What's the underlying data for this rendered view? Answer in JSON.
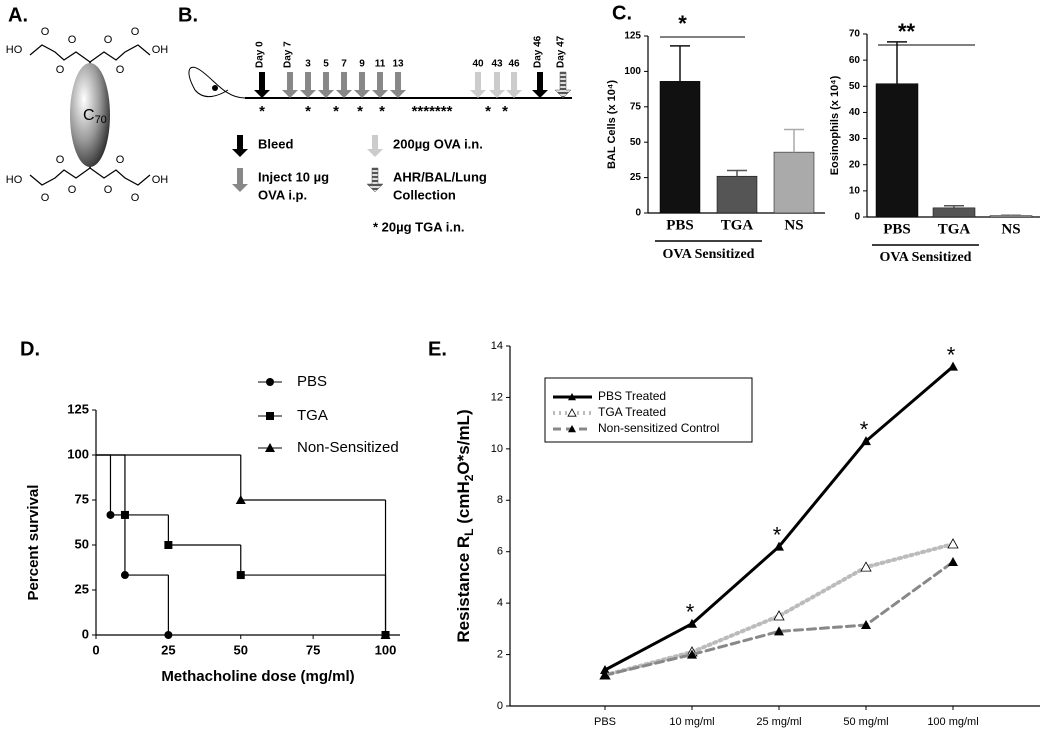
{
  "panel_labels": {
    "a": "A.",
    "b": "B.",
    "c": "C.",
    "d": "D.",
    "e": "E."
  },
  "structure": {
    "atoms": [
      "HO",
      "O",
      "O",
      "O",
      "O",
      "O",
      "O",
      "OH",
      "HO",
      "O",
      "O",
      "O",
      "O",
      "O",
      "O",
      "OH"
    ],
    "core": "C",
    "core_subscript": "70"
  },
  "timeline": {
    "day_labels": [
      "Day 0",
      "Day 7",
      "Day 46",
      "Day 47"
    ],
    "day_numbers": [
      "3",
      "5",
      "7",
      "9",
      "11",
      "13",
      "40",
      "43",
      "46"
    ],
    "stars": [
      "*",
      "*",
      "*",
      "*",
      "*",
      "*******",
      "*",
      "*"
    ],
    "legend": [
      {
        "text": [
          "Bleed"
        ]
      },
      {
        "text": [
          "Inject 10 µg",
          "OVA i.p."
        ]
      },
      {
        "text": [
          "200µg OVA i.n."
        ]
      },
      {
        "text": [
          "AHR/BAL/Lung",
          "Collection"
        ]
      }
    ],
    "note": "* 20µg TGA i.n."
  },
  "chart_data": [
    {
      "type": "bar",
      "ylabel": "BAL Cells (x 10⁴)",
      "categories": [
        "PBS",
        "TGA",
        "NS"
      ],
      "values": [
        93,
        26,
        43
      ],
      "errors": [
        25,
        4,
        16
      ],
      "colors": [
        "#111111",
        "#555555",
        "#aaaaaa"
      ],
      "ylim": [
        0,
        125
      ],
      "yticks": [
        0,
        25,
        50,
        75,
        100,
        125
      ],
      "group_label": "OVA Sensitized",
      "significance": "*"
    },
    {
      "type": "bar",
      "ylabel": "Eosinophils (x 10⁴)",
      "categories": [
        "PBS",
        "TGA",
        "NS"
      ],
      "values": [
        51,
        3.5,
        0.5
      ],
      "errors": [
        16,
        0.8,
        0.3
      ],
      "colors": [
        "#111111",
        "#555555",
        "#aaaaaa"
      ],
      "ylim": [
        0,
        70
      ],
      "yticks": [
        0,
        10,
        20,
        30,
        40,
        50,
        60,
        70
      ],
      "group_label": "OVA Sensitized",
      "significance": "**"
    },
    {
      "type": "step",
      "xlabel": "Methacholine dose (mg/ml)",
      "ylabel": "Percent survival",
      "xlim": [
        0,
        105
      ],
      "xticks": [
        0,
        25,
        50,
        75,
        100
      ],
      "ylim": [
        0,
        125
      ],
      "yticks": [
        0,
        25,
        50,
        75,
        100,
        125
      ],
      "color": "#000000",
      "series": [
        {
          "name": "PBS",
          "marker": "circle",
          "x": [
            0,
            5,
            10,
            25
          ],
          "values": [
            100,
            66.7,
            33.3,
            0
          ]
        },
        {
          "name": "TGA",
          "marker": "square",
          "x": [
            0,
            10,
            25,
            50,
            100
          ],
          "values": [
            100,
            66.7,
            50,
            33.3,
            0
          ]
        },
        {
          "name": "Non-Sensitized",
          "marker": "triangle",
          "x": [
            0,
            50,
            100
          ],
          "values": [
            100,
            75,
            0
          ]
        }
      ]
    },
    {
      "type": "line",
      "ylabel_parts": [
        "Resistance R",
        "L",
        " (cmH",
        "2",
        "O*s/mL)"
      ],
      "categories": [
        "PBS",
        "10 mg/ml",
        "25 mg/ml",
        "50 mg/ml",
        "100 mg/ml"
      ],
      "ylim": [
        0,
        14
      ],
      "yticks": [
        0,
        2,
        4,
        6,
        8,
        10,
        12,
        14
      ],
      "series": [
        {
          "name": "PBS Treated",
          "color": "#000000",
          "dash": "solid",
          "marker": "triangle",
          "values": [
            1.4,
            3.2,
            6.2,
            10.3,
            13.2
          ]
        },
        {
          "name": "TGA Treated",
          "color": "#bbbbbb",
          "dash": "dotted",
          "marker": "open-triangle",
          "values": [
            1.2,
            2.1,
            3.5,
            5.4,
            6.3
          ]
        },
        {
          "name": "Non-sensitized Control",
          "color": "#888888",
          "dash": "dashed",
          "marker": "triangle",
          "values": [
            1.2,
            2.0,
            2.9,
            3.15,
            5.6
          ]
        }
      ],
      "significance": [
        null,
        "*",
        "*",
        "*",
        "*"
      ]
    }
  ]
}
